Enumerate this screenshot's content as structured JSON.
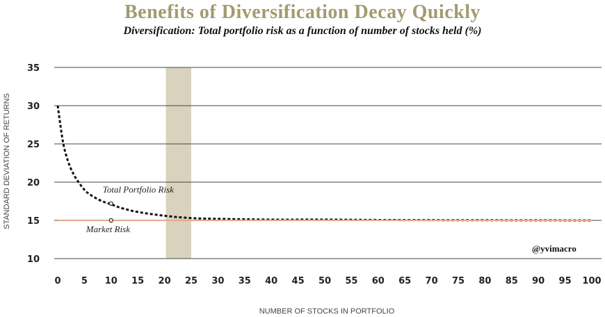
{
  "header": {
    "title": "Benefits of Diversification Decay Quickly",
    "subtitle": "Diversification: Total portfolio risk as a function of number of stocks held (%)"
  },
  "watermark": "@yvimacro",
  "colors": {
    "title": "#a39a6f",
    "highlight_band": "#d9d2bd",
    "market_line": "#e5a98d",
    "portfolio_curve": "#111111",
    "grid": "#444444"
  },
  "chart_data": {
    "type": "line",
    "title": "Diversification: Total portfolio risk as a function of number of stocks held (%)",
    "xlabel": "NUMBER OF STOCKS IN PORTFOLIO",
    "ylabel": "STANDARD DEVIATION OF RETURNS",
    "xlim": [
      0,
      100
    ],
    "ylim": [
      10,
      35
    ],
    "xticks": [
      0,
      5,
      10,
      15,
      20,
      25,
      30,
      35,
      40,
      45,
      50,
      55,
      60,
      65,
      70,
      75,
      80,
      85,
      90,
      95,
      100
    ],
    "yticks": [
      10,
      15,
      20,
      25,
      30,
      35
    ],
    "grid": "horizontal",
    "highlight_range": [
      20,
      25
    ],
    "series": [
      {
        "name": "Total Portfolio Risk",
        "style": "dotted",
        "x": [
          0,
          1,
          2,
          3,
          4,
          5,
          6,
          8,
          10,
          12,
          15,
          20,
          25,
          30,
          40,
          50,
          60,
          70,
          80,
          90,
          100
        ],
        "y": [
          30.0,
          25.2,
          22.6,
          21.0,
          19.9,
          19.0,
          18.4,
          17.6,
          17.1,
          16.6,
          16.1,
          15.6,
          15.3,
          15.2,
          15.1,
          15.1,
          15.05,
          15.03,
          15.02,
          15.01,
          15.0
        ]
      },
      {
        "name": "Market Risk",
        "style": "solid",
        "x": [
          0,
          100
        ],
        "y": [
          15,
          15
        ]
      }
    ],
    "annotations": [
      {
        "text": "Total Portfolio Risk",
        "x": 10,
        "y": 17.2
      },
      {
        "text": "Market Risk",
        "x": 10,
        "y": 15
      }
    ]
  }
}
